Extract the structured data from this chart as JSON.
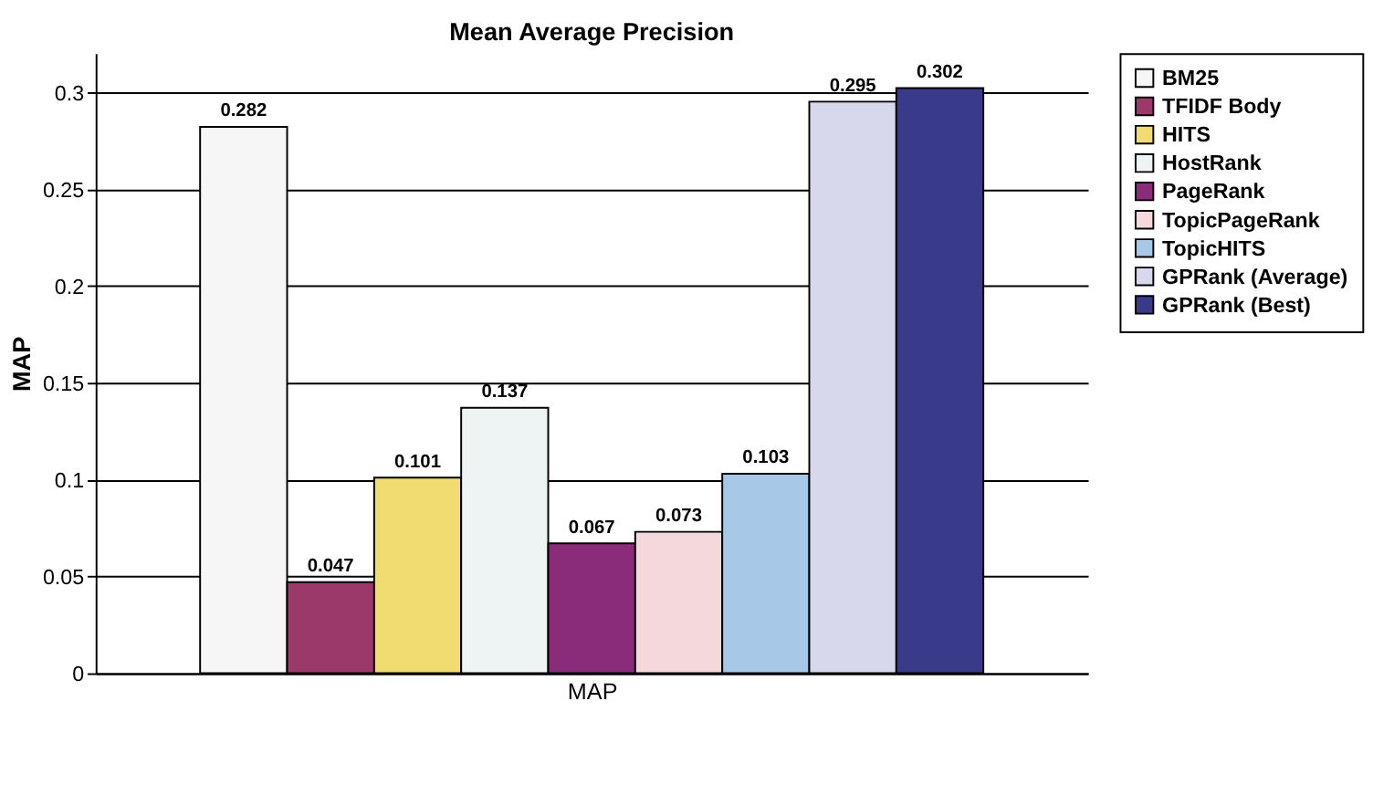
{
  "chart_data": {
    "type": "bar",
    "title": "Mean Average Precision",
    "xlabel": "MAP",
    "ylabel": "MAP",
    "categories": [
      null
    ],
    "series": [
      {
        "name": "BM25",
        "color": "#f6f6f6",
        "values": [
          0.282
        ]
      },
      {
        "name": "TFIDF Body",
        "color": "#9b3a6a",
        "values": [
          0.047
        ]
      },
      {
        "name": "HITS",
        "color": "#f0dc70",
        "values": [
          0.101
        ]
      },
      {
        "name": "HostRank",
        "color": "#eef4f4",
        "values": [
          0.137
        ]
      },
      {
        "name": "PageRank",
        "color": "#8a2c7a",
        "values": [
          0.067
        ]
      },
      {
        "name": "TopicPageRank",
        "color": "#f4d8dc",
        "values": [
          0.073
        ]
      },
      {
        "name": "TopicHITS",
        "color": "#a8c8e8",
        "values": [
          0.103
        ]
      },
      {
        "name": "GPRank (Average)",
        "color": "#d8d8ec",
        "values": [
          0.295
        ]
      },
      {
        "name": "GPRank (Best)",
        "color": "#3a3a8a",
        "values": [
          0.302
        ]
      }
    ],
    "ylim": [
      0,
      0.32
    ],
    "yticks": [
      0,
      0.05,
      0.1,
      0.15,
      0.2,
      0.25,
      0.3
    ],
    "grid": "y",
    "legend": "right",
    "data_labels": true
  }
}
